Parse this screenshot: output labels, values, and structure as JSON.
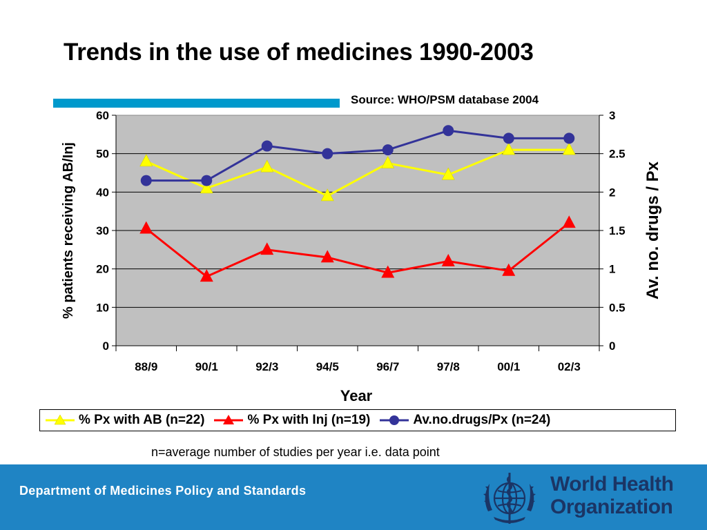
{
  "slide": {
    "title": "Trends in the use of medicines 1990-2003",
    "source": "Source: WHO/PSM database 2004",
    "note": "n=average number of studies per year i.e. data point",
    "accent_color": "#0099cc"
  },
  "footer": {
    "department": "Department of Medicines Policy and Standards",
    "org_name_line1": "World Health",
    "org_name_line2": "Organization",
    "background": "#1f84c4",
    "org_color": "#1b3565"
  },
  "chart_data": {
    "type": "line",
    "categories": [
      "88/9",
      "90/1",
      "92/3",
      "94/5",
      "96/7",
      "97/8",
      "00/1",
      "02/3"
    ],
    "xlabel": "Year",
    "ylabel": "% patients receiving AB/Inj",
    "ylabel_right": "Av. no. drugs / Px",
    "ylim": [
      0,
      60
    ],
    "ylim_right": [
      0,
      3
    ],
    "yticks": [
      "0",
      "10",
      "20",
      "30",
      "40",
      "50",
      "60"
    ],
    "yticks_right": [
      "0",
      "0.5",
      "1",
      "1.5",
      "2",
      "2.5",
      "3"
    ],
    "grid": true,
    "plot_background": "#c0c0c0",
    "legend_position": "bottom",
    "series": [
      {
        "name": "% Px with AB (n=22)",
        "axis": "left",
        "marker": "triangle",
        "color": "#ffff00",
        "values": [
          48,
          41,
          46.5,
          39,
          47.5,
          44.5,
          51,
          51
        ]
      },
      {
        "name": "% Px with Inj (n=19)",
        "axis": "left",
        "marker": "triangle",
        "color": "#ff0000",
        "values": [
          30.5,
          18,
          25,
          23,
          19,
          22,
          19.5,
          32
        ]
      },
      {
        "name": "Av.no.drugs/Px (n=24)",
        "axis": "right",
        "marker": "circle",
        "color": "#333399",
        "values": [
          2.15,
          2.15,
          2.6,
          2.5,
          2.55,
          2.8,
          2.7,
          2.7
        ]
      }
    ]
  }
}
